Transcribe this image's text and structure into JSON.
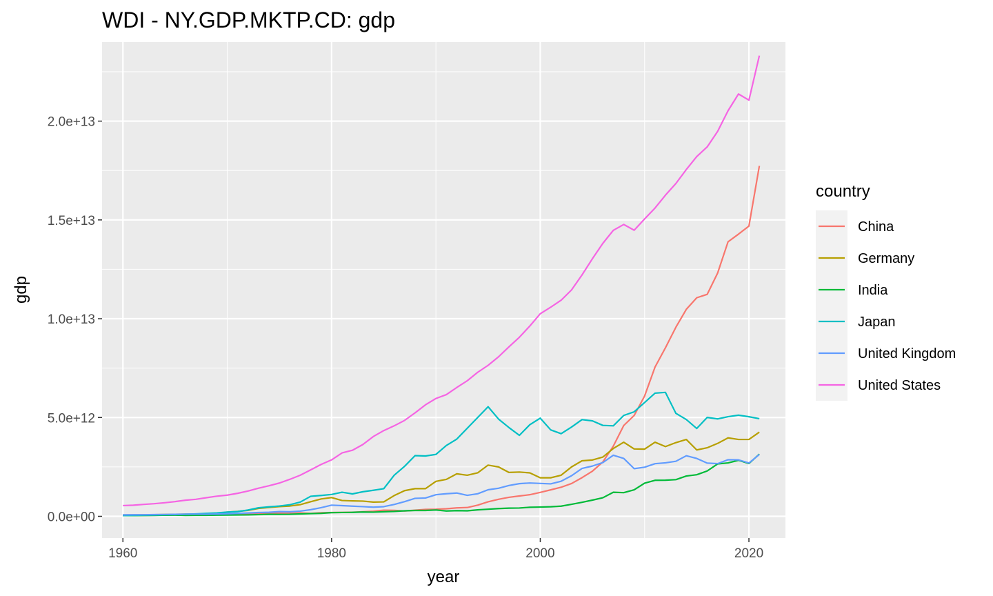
{
  "chart_data": {
    "type": "line",
    "title": "WDI - NY.GDP.MKTP.CD:  gdp",
    "xlabel": "year",
    "ylabel": "gdp",
    "xlim": [
      1958,
      2023.5
    ],
    "ylim": [
      -1100000000000.0,
      24000000000000.0
    ],
    "x_ticks": [
      1960,
      1980,
      2000,
      2020
    ],
    "x_tick_labels": [
      "1960",
      "1980",
      "2000",
      "2020"
    ],
    "y_ticks": [
      0,
      5000000000000.0,
      10000000000000.0,
      15000000000000.0,
      20000000000000.0
    ],
    "y_tick_labels": [
      "0.0e+00",
      "5.0e+12",
      "1.0e+13",
      "1.5e+13",
      "2.0e+13"
    ],
    "grid": true,
    "legend_title": "country",
    "legend_position": "right",
    "x_start": 1960,
    "series": [
      {
        "name": "China",
        "color": "#F8766D",
        "values": [
          60000000000.0,
          50000000000.0,
          47000000000.0,
          50000000000.0,
          59000000000.0,
          70000000000.0,
          76000000000.0,
          72000000000.0,
          70000000000.0,
          79000000000.0,
          92000000000.0,
          100000000000.0,
          114000000000.0,
          138000000000.0,
          144000000000.0,
          163000000000.0,
          154000000000.0,
          175000000000.0,
          150000000000.0,
          178000000000.0,
          191000000000.0,
          196000000000.0,
          205000000000.0,
          230000000000.0,
          260000000000.0,
          310000000000.0,
          300000000000.0,
          270000000000.0,
          310000000000.0,
          350000000000.0,
          360000000000.0,
          383000000000.0,
          427000000000.0,
          444000000000.0,
          564000000000.0,
          734000000000.0,
          863000000000.0,
          961000000000.0,
          1029000000000.0,
          1094000000000.0,
          1211000000000.0,
          1339000000000.0,
          1471000000000.0,
          1660000000000.0,
          1955000000000.0,
          2286000000000.0,
          2752000000000.0,
          3550000000000.0,
          4594000000000.0,
          5102000000000.0,
          6087000000000.0,
          7552000000000.0,
          8532000000000.0,
          9570000000000.0,
          10476000000000.0,
          11062000000000.0,
          11233000000000.0,
          12310000000000.0,
          13895000000000.0,
          14280000000000.0,
          14688000000000.0,
          17734000000000.0
        ]
      },
      {
        "name": "Germany",
        "color": "#B79F00",
        "values": [
          70000000000.0,
          75000000000.0,
          80000000000.0,
          85000000000.0,
          90000000000.0,
          100000000000.0,
          110000000000.0,
          110000000000.0,
          120000000000.0,
          130000000000.0,
          215000000000.0,
          250000000000.0,
          300000000000.0,
          398000000000.0,
          446000000000.0,
          490000000000.0,
          520000000000.0,
          590000000000.0,
          740000000000.0,
          880000000000.0,
          950000000000.0,
          800000000000.0,
          780000000000.0,
          770000000000.0,
          720000000000.0,
          730000000000.0,
          1050000000000.0,
          1300000000000.0,
          1400000000000.0,
          1400000000000.0,
          1770000000000.0,
          1870000000000.0,
          2150000000000.0,
          2080000000000.0,
          2200000000000.0,
          2590000000000.0,
          2500000000000.0,
          2220000000000.0,
          2240000000000.0,
          2200000000000.0,
          1950000000000.0,
          1950000000000.0,
          2080000000000.0,
          2500000000000.0,
          2810000000000.0,
          2850000000000.0,
          3000000000000.0,
          3430000000000.0,
          3750000000000.0,
          3410000000000.0,
          3400000000000.0,
          3750000000000.0,
          3530000000000.0,
          3730000000000.0,
          3890000000000.0,
          3360000000000.0,
          3470000000000.0,
          3690000000000.0,
          3970000000000.0,
          3890000000000.0,
          3890000000000.0,
          4260000000000.0
        ]
      },
      {
        "name": "India",
        "color": "#00BA38",
        "values": [
          37000000000.0,
          39000000000.0,
          42000000000.0,
          48000000000.0,
          56000000000.0,
          59000000000.0,
          46000000000.0,
          50000000000.0,
          53000000000.0,
          58000000000.0,
          62000000000.0,
          67000000000.0,
          71000000000.0,
          85000000000.0,
          99000000000.0,
          98000000000.0,
          102000000000.0,
          121000000000.0,
          137000000000.0,
          153000000000.0,
          186000000000.0,
          193000000000.0,
          200000000000.0,
          218000000000.0,
          212000000000.0,
          232000000000.0,
          248000000000.0,
          279000000000.0,
          296000000000.0,
          296000000000.0,
          321000000000.0,
          270000000000.0,
          288000000000.0,
          279000000000.0,
          327000000000.0,
          360000000000.0,
          392000000000.0,
          415000000000.0,
          421000000000.0,
          458000000000.0,
          468000000000.0,
          485000000000.0,
          515000000000.0,
          607000000000.0,
          709000000000.0,
          820000000000.0,
          940000000000.0,
          1216000000000.0,
          1198000000000.0,
          1342000000000.0,
          1676000000000.0,
          1823000000000.0,
          1828000000000.0,
          1857000000000.0,
          2039000000000.0,
          2104000000000.0,
          2295000000000.0,
          2651000000000.0,
          2703000000000.0,
          2836000000000.0,
          2672000000000.0,
          3150000000000.0
        ]
      },
      {
        "name": "Japan",
        "color": "#00BFC4",
        "values": [
          44000000000.0,
          53000000000.0,
          61000000000.0,
          68000000000.0,
          81000000000.0,
          91000000000.0,
          106000000000.0,
          124000000000.0,
          147000000000.0,
          172000000000.0,
          213000000000.0,
          240000000000.0,
          318000000000.0,
          432000000000.0,
          479000000000.0,
          522000000000.0,
          585000000000.0,
          721000000000.0,
          1014000000000.0,
          1055000000000.0,
          1105000000000.0,
          1218000000000.0,
          1134000000000.0,
          1243000000000.0,
          1318000000000.0,
          1399000000000.0,
          2079000000000.0,
          2533000000000.0,
          3072000000000.0,
          3054000000000.0,
          3133000000000.0,
          3584000000000.0,
          3909000000000.0,
          4454000000000.0,
          4999000000000.0,
          5546000000000.0,
          4923000000000.0,
          4492000000000.0,
          4098000000000.0,
          4636000000000.0,
          4968000000000.0,
          4374000000000.0,
          4182000000000.0,
          4519000000000.0,
          4893000000000.0,
          4831000000000.0,
          4601000000000.0,
          4579000000000.0,
          5106000000000.0,
          5289000000000.0,
          5759000000000.0,
          6233000000000.0,
          6272000000000.0,
          5212000000000.0,
          4897000000000.0,
          4445000000000.0,
          5004000000000.0,
          4931000000000.0,
          5041000000000.0,
          5118000000000.0,
          5040000000000.0,
          4941000000000.0
        ]
      },
      {
        "name": "United Kingdom",
        "color": "#619CFF",
        "values": [
          73000000000.0,
          77000000000.0,
          81000000000.0,
          86000000000.0,
          94000000000.0,
          101000000000.0,
          108000000000.0,
          112000000000.0,
          107000000000.0,
          117000000000.0,
          131000000000.0,
          148000000000.0,
          169000000000.0,
          192000000000.0,
          206000000000.0,
          241000000000.0,
          232000000000.0,
          263000000000.0,
          335000000000.0,
          438000000000.0,
          565000000000.0,
          540000000000.0,
          515000000000.0,
          490000000000.0,
          461000000000.0,
          489000000000.0,
          601000000000.0,
          745000000000.0,
          910000000000.0,
          926000000000.0,
          1093000000000.0,
          1142000000000.0,
          1179000000000.0,
          1062000000000.0,
          1140000000000.0,
          1344000000000.0,
          1419000000000.0,
          1560000000000.0,
          1653000000000.0,
          1687000000000.0,
          1665000000000.0,
          1643000000000.0,
          1775000000000.0,
          2055000000000.0,
          2422000000000.0,
          2544000000000.0,
          2719000000000.0,
          3091000000000.0,
          2930000000000.0,
          2413000000000.0,
          2485000000000.0,
          2664000000000.0,
          2708000000000.0,
          2785000000000.0,
          3065000000000.0,
          2928000000000.0,
          2694000000000.0,
          2666000000000.0,
          2864000000000.0,
          2858000000000.0,
          2697000000000.0,
          3131000000000.0
        ]
      },
      {
        "name": "United States",
        "color": "#F564E3",
        "values": [
          543000000000.0,
          563000000000.0,
          605000000000.0,
          638000000000.0,
          686000000000.0,
          744000000000.0,
          815000000000.0,
          862000000000.0,
          943000000000.0,
          1019000000000.0,
          1073000000000.0,
          1165000000000.0,
          1280000000000.0,
          1425000000000.0,
          1545000000000.0,
          1684000000000.0,
          1873000000000.0,
          2082000000000.0,
          2352000000000.0,
          2627000000000.0,
          2857000000000.0,
          3207000000000.0,
          3343000000000.0,
          3634000000000.0,
          4037000000000.0,
          4339000000000.0,
          4580000000000.0,
          4855000000000.0,
          5236000000000.0,
          5642000000000.0,
          5963000000000.0,
          6158000000000.0,
          6520000000000.0,
          6859000000000.0,
          7287000000000.0,
          7640000000000.0,
          8073000000000.0,
          8578000000000.0,
          9063000000000.0,
          9631000000000.0,
          10252000000000.0,
          10582000000000.0,
          10936000000000.0,
          11458000000000.0,
          12214000000000.0,
          13037000000000.0,
          13815000000000.0,
          14474000000000.0,
          14770000000000.0,
          14478000000000.0,
          15049000000000.0,
          15600000000000.0,
          16254000000000.0,
          16843000000000.0,
          17551000000000.0,
          18206000000000.0,
          18695000000000.0,
          19480000000000.0,
          20527000000000.0,
          21373000000000.0,
          21060000000000.0,
          23315000000000.0
        ]
      }
    ]
  }
}
